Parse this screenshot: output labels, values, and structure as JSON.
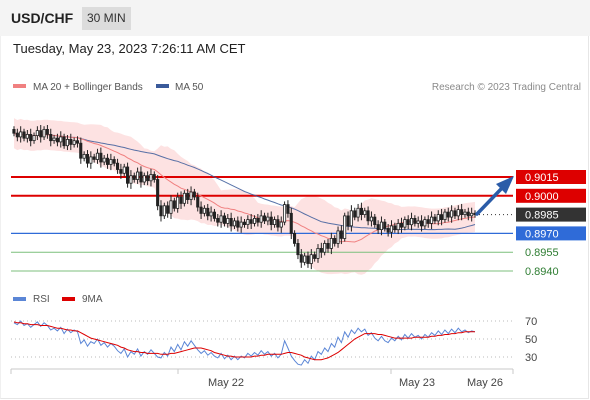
{
  "header": {
    "symbol": "USD/CHF",
    "timeframe": "30 MIN"
  },
  "datetime": "Tuesday, May 23, 2023 7:26:11 AM CET",
  "legend": {
    "price": [
      {
        "label": "MA 20 + Bollinger Bands",
        "color": "#f08080"
      },
      {
        "label": "MA 50",
        "color": "#3a5a9a"
      }
    ],
    "rsi": [
      {
        "label": "RSI",
        "color": "#5b86d6"
      },
      {
        "label": "9MA",
        "color": "#dd0000"
      }
    ]
  },
  "copyright": "Research © 2023 Trading Central",
  "colors": {
    "resistance": "#dd0000",
    "support": "#2f6bd8",
    "target": "#2e7d32",
    "bull": "#ffffff",
    "bear": "#222222",
    "bands": "#fde2e2",
    "arrow": "#2b5ca8"
  },
  "chart_data": [
    {
      "type": "candlestick",
      "ylim": [
        0.8928,
        0.9072
      ],
      "x_ticks": [
        "May 22",
        "May 23",
        "May 26"
      ],
      "levels": [
        {
          "label": "0.9015",
          "value": 0.9015,
          "kind": "resistance"
        },
        {
          "label": "0.9000",
          "value": 0.9,
          "kind": "resistance"
        },
        {
          "label": "0.8985",
          "value": 0.8985,
          "kind": "last"
        },
        {
          "label": "0.8970",
          "value": 0.897,
          "kind": "support"
        },
        {
          "label": "0.8955",
          "value": 0.8955,
          "kind": "target"
        },
        {
          "label": "0.8940",
          "value": 0.894,
          "kind": "target"
        }
      ],
      "closes": [
        0.905,
        0.9047,
        0.9051,
        0.9046,
        0.9049,
        0.9044,
        0.9048,
        0.9052,
        0.9047,
        0.9053,
        0.9049,
        0.9044,
        0.9046,
        0.9043,
        0.9047,
        0.904,
        0.9045,
        0.9041,
        0.9044,
        0.9042,
        0.903,
        0.9033,
        0.9026,
        0.9031,
        0.9029,
        0.9034,
        0.9027,
        0.903,
        0.9025,
        0.9029,
        0.9026,
        0.9021,
        0.9018,
        0.9023,
        0.901,
        0.9016,
        0.9013,
        0.9019,
        0.9011,
        0.9016,
        0.9012,
        0.9017,
        0.9013,
        0.8992,
        0.8984,
        0.8992,
        0.8986,
        0.8996,
        0.899,
        0.8999,
        0.8994,
        0.9002,
        0.8997,
        0.9003,
        0.8999,
        0.8991,
        0.8986,
        0.899,
        0.8984,
        0.8987,
        0.8982,
        0.8979,
        0.8984,
        0.8978,
        0.8982,
        0.8976,
        0.898,
        0.8975,
        0.8979,
        0.8977,
        0.8981,
        0.8978,
        0.8982,
        0.8979,
        0.8984,
        0.898,
        0.8983,
        0.8977,
        0.8981,
        0.8975,
        0.8979,
        0.8993,
        0.8986,
        0.897,
        0.8962,
        0.8953,
        0.8947,
        0.8952,
        0.8946,
        0.8953,
        0.895,
        0.8958,
        0.8955,
        0.8962,
        0.8958,
        0.8966,
        0.8962,
        0.8972,
        0.8966,
        0.8984,
        0.8976,
        0.8988,
        0.8983,
        0.899,
        0.8985,
        0.8988,
        0.898,
        0.8983,
        0.8977,
        0.8973,
        0.8979,
        0.8974,
        0.8971,
        0.8976,
        0.8973,
        0.8978,
        0.8975,
        0.8981,
        0.8977,
        0.8982,
        0.8978,
        0.898,
        0.8976,
        0.8981,
        0.8978,
        0.8983,
        0.898,
        0.8985,
        0.8981,
        0.8987,
        0.8983,
        0.8988,
        0.8984,
        0.8989,
        0.8985,
        0.8987,
        0.8984,
        0.8986,
        0.8985
      ]
    },
    {
      "type": "line",
      "ylim": [
        20,
        80
      ],
      "y_ticks": [
        "70",
        "50",
        "30"
      ],
      "series": [
        {
          "name": "RSI",
          "values": [
            68,
            66,
            70,
            65,
            67,
            63,
            66,
            69,
            64,
            68,
            65,
            60,
            62,
            59,
            63,
            56,
            61,
            57,
            60,
            58,
            45,
            49,
            42,
            47,
            45,
            50,
            43,
            46,
            41,
            45,
            42,
            37,
            34,
            39,
            30,
            36,
            33,
            39,
            31,
            36,
            33,
            38,
            34,
            30,
            29,
            35,
            31,
            41,
            36,
            44,
            38,
            47,
            42,
            48,
            43,
            38,
            34,
            37,
            32,
            35,
            31,
            29,
            34,
            28,
            32,
            27,
            31,
            27,
            31,
            29,
            34,
            31,
            35,
            32,
            37,
            33,
            36,
            31,
            34,
            29,
            33,
            48,
            40,
            31,
            26,
            22,
            21,
            27,
            23,
            31,
            27,
            36,
            33,
            40,
            36,
            45,
            41,
            52,
            46,
            58,
            52,
            60,
            56,
            62,
            58,
            61,
            54,
            57,
            51,
            48,
            53,
            48,
            46,
            51,
            48,
            53,
            49,
            55,
            51,
            56,
            52,
            54,
            50,
            55,
            52,
            57,
            54,
            59,
            55,
            60,
            56,
            61,
            57,
            62,
            58,
            60,
            57,
            59,
            58
          ]
        },
        {
          "name": "9MA",
          "values": [
            69,
            68,
            68,
            67,
            67,
            66,
            66,
            66,
            65,
            65,
            65,
            64,
            63,
            62,
            62,
            61,
            60,
            60,
            59,
            59,
            57,
            55,
            53,
            51,
            50,
            49,
            48,
            47,
            46,
            45,
            44,
            43,
            41,
            40,
            38,
            37,
            36,
            36,
            35,
            35,
            34,
            34,
            34,
            34,
            33,
            33,
            33,
            34,
            34,
            35,
            36,
            37,
            38,
            39,
            40,
            40,
            40,
            39,
            38,
            37,
            35,
            34,
            33,
            32,
            31,
            31,
            30,
            30,
            30,
            30,
            30,
            30,
            31,
            31,
            32,
            32,
            33,
            33,
            33,
            33,
            33,
            34,
            35,
            35,
            34,
            33,
            32,
            30,
            29,
            28,
            27,
            27,
            27,
            28,
            29,
            31,
            33,
            35,
            38,
            41,
            44,
            47,
            50,
            52,
            54,
            56,
            56,
            56,
            56,
            55,
            55,
            54,
            53,
            52,
            51,
            51,
            51,
            51,
            51,
            51,
            52,
            52,
            52,
            52,
            52,
            53,
            53,
            54,
            54,
            55,
            55,
            56,
            56,
            57,
            57,
            58,
            58,
            58,
            58
          ]
        }
      ]
    }
  ]
}
